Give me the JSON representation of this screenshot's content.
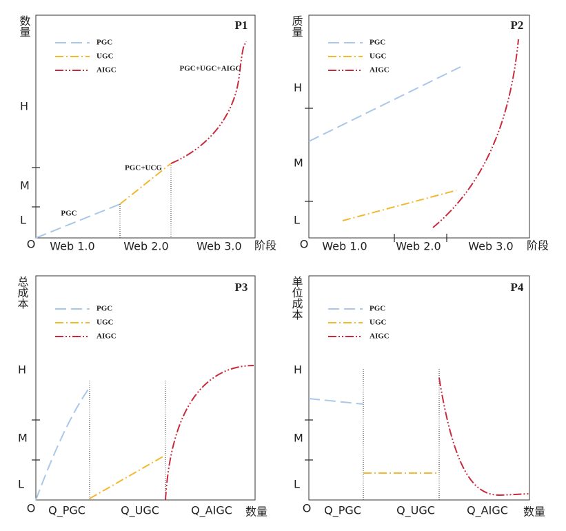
{
  "panels": [
    {
      "title": "P1",
      "y_label": "数量",
      "y_levels": [
        "H",
        "M",
        "L"
      ],
      "origin": "O",
      "x_labels": [
        "Web 1.0",
        "Web 2.0",
        "Web 3.0"
      ],
      "x_axis_label": "阶段",
      "legend": [
        "PGC",
        "UGC",
        "AIGC"
      ],
      "annotations": [
        "PGC",
        "PGC+UCG",
        "PGC+UGC+AIGC"
      ]
    },
    {
      "title": "P2",
      "y_label": "质量",
      "y_levels": [
        "H",
        "M",
        "L"
      ],
      "origin": "O",
      "x_labels": [
        "Web 1.0",
        "Web 2.0",
        "Web 3.0"
      ],
      "x_axis_label": "阶段",
      "legend": [
        "PGC",
        "UGC",
        "AIGC"
      ]
    },
    {
      "title": "P3",
      "y_label": "总成本",
      "y_levels": [
        "H",
        "M",
        "L"
      ],
      "origin": "O",
      "x_labels": [
        "Q_PGC",
        "Q_UGC",
        "Q_AIGC"
      ],
      "x_axis_label": "数量",
      "legend": [
        "PGC",
        "UGC",
        "AIGC"
      ]
    },
    {
      "title": "P4",
      "y_label": "单位成本",
      "y_levels": [
        "H",
        "M",
        "L"
      ],
      "origin": "O",
      "x_labels": [
        "Q_PGC",
        "Q_UGC",
        "Q_AIGC"
      ],
      "x_axis_label": "数量",
      "legend": [
        "PGC",
        "UGC",
        "AIGC"
      ]
    }
  ]
}
